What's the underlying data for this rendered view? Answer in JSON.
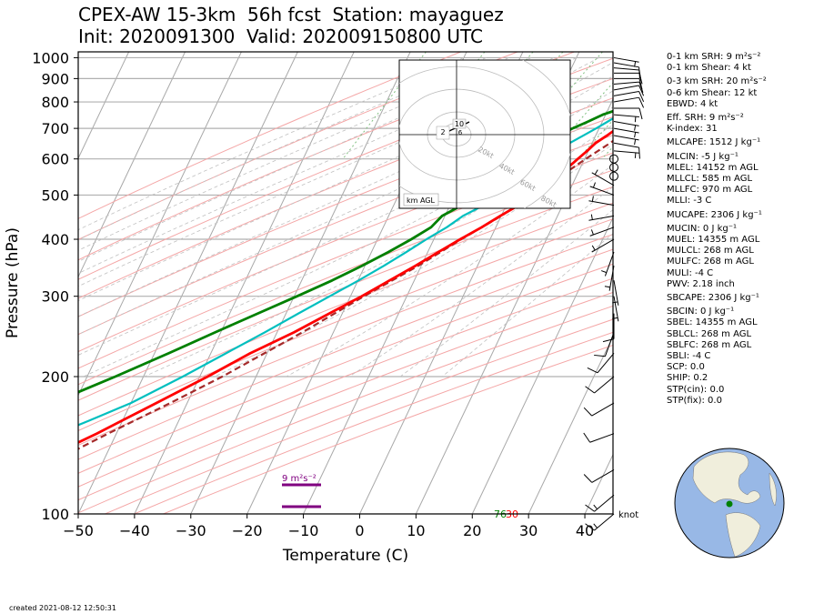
{
  "header": {
    "line1": "CPEX-AW 15-3km  56h fcst  Station: mayaguez",
    "line2": "Init: 2020091300  Valid: 202009150800 UTC"
  },
  "footer": {
    "created": "created 2021-08-12 12:50:31"
  },
  "stats": [
    {
      "text": "0-1 km SRH: 9 m²s⁻²",
      "gap": false
    },
    {
      "text": "0-1 km Shear: 4 kt",
      "gap": false
    },
    {
      "text": "0-3 km SRH: 20 m²s⁻²",
      "gap": true
    },
    {
      "text": "0-6 km Shear: 12 kt",
      "gap": false
    },
    {
      "text": "EBWD: 4 kt",
      "gap": false
    },
    {
      "text": "Eff. SRH: 9 m²s⁻²",
      "gap": true
    },
    {
      "text": "K-index: 31",
      "gap": false
    },
    {
      "text": "MLCAPE: 1512 J kg⁻¹",
      "gap": true
    },
    {
      "text": "MLCIN: -5 J kg⁻¹",
      "gap": true
    },
    {
      "text": "MLEL: 14152 m AGL",
      "gap": false
    },
    {
      "text": "MLLCL: 585 m AGL",
      "gap": false
    },
    {
      "text": "MLLFC: 970 m AGL",
      "gap": false
    },
    {
      "text": "MLLI: -3 C",
      "gap": false
    },
    {
      "text": "MUCAPE: 2306 J kg⁻¹",
      "gap": true
    },
    {
      "text": "MUCIN: 0 J kg⁻¹",
      "gap": true
    },
    {
      "text": "MUEL: 14355 m AGL",
      "gap": false
    },
    {
      "text": "MULCL: 268 m AGL",
      "gap": false
    },
    {
      "text": "MULFC: 268 m AGL",
      "gap": false
    },
    {
      "text": "MULI: -4 C",
      "gap": false
    },
    {
      "text": "PWV: 2.18 inch",
      "gap": false
    },
    {
      "text": "SBCAPE: 2306 J kg⁻¹",
      "gap": true
    },
    {
      "text": "SBCIN: 0 J kg⁻¹",
      "gap": true
    },
    {
      "text": "SBEL: 14355 m AGL",
      "gap": false
    },
    {
      "text": "SBLCL: 268 m AGL",
      "gap": false
    },
    {
      "text": "SBLFC: 268 m AGL",
      "gap": false
    },
    {
      "text": "SBLI: -4 C",
      "gap": false
    },
    {
      "text": "SCP: 0.0",
      "gap": false
    },
    {
      "text": "SHIP: 0.2",
      "gap": false
    },
    {
      "text": "STP(cin): 0.0",
      "gap": false
    },
    {
      "text": "STP(fix): 0.0",
      "gap": false
    }
  ],
  "chart_data": {
    "type": "line",
    "chart_kind": "skew-T log-p",
    "xlabel": "Temperature (C)",
    "ylabel": "Pressure (hPa)",
    "xlim": [
      -50,
      45
    ],
    "ylim": [
      1030,
      100
    ],
    "y_scale": "log",
    "x_ticks": [
      "−50",
      "−40",
      "−30",
      "−20",
      "−10",
      "0",
      "10",
      "20",
      "30",
      "40"
    ],
    "x_tick_values": [
      -50,
      -40,
      -30,
      -20,
      -10,
      0,
      10,
      20,
      30,
      40
    ],
    "y_ticks": [
      "100",
      "200",
      "300",
      "400",
      "500",
      "600",
      "700",
      "800",
      "900",
      "1000"
    ],
    "y_tick_values": [
      100,
      200,
      300,
      400,
      500,
      600,
      700,
      800,
      900,
      1000
    ],
    "grid": true,
    "colors": {
      "temperature": "#ff0000",
      "dewpoint": "#008000",
      "wetbulb": "#00bfbf",
      "parcel": "#a52a2a",
      "dry_adiabat": "#f4a6a6",
      "moist_adiabat": "#c0c0c0",
      "mixing_ratio": "#7fbf7f",
      "srh_bar": "#800080"
    },
    "series": [
      {
        "key": "temperature",
        "pressure": [
          1010,
          1000,
          975,
          950,
          925,
          900,
          875,
          850,
          825,
          800,
          775,
          750,
          725,
          700,
          675,
          650,
          625,
          600,
          575,
          550,
          525,
          500,
          475,
          450,
          425,
          400,
          375,
          350,
          325,
          300,
          275,
          250,
          225,
          200,
          175,
          150,
          140,
          130,
          120,
          110,
          100
        ],
        "values": [
          27.5,
          26.0,
          24.8,
          23.6,
          22.5,
          21.2,
          20.0,
          19.2,
          18.3,
          17.2,
          16.0,
          15.0,
          14.0,
          13.2,
          12.0,
          10.6,
          9.8,
          8.8,
          7.8,
          6.8,
          5.6,
          4.4,
          2.2,
          -0.2,
          -2.5,
          -5.3,
          -8.1,
          -11.0,
          -14.4,
          -18.0,
          -22.3,
          -27.0,
          -33.0,
          -38.6,
          -45.5,
          -53.5,
          -57.4,
          -61.5,
          -65.8,
          -70.5,
          -75.0
        ]
      },
      {
        "key": "dewpoint",
        "pressure": [
          1010,
          1000,
          975,
          950,
          925,
          900,
          875,
          850,
          825,
          800,
          775,
          750,
          725,
          700,
          675,
          650,
          625,
          600,
          575,
          550,
          525,
          500,
          475,
          450,
          425,
          400,
          375,
          350,
          325,
          300,
          275,
          250,
          225,
          200,
          175,
          160,
          150,
          140,
          130,
          120,
          110,
          100
        ],
        "values": [
          25.2,
          23.7,
          22.6,
          21.8,
          20.8,
          19.1,
          18.4,
          18.5,
          16.5,
          14.3,
          12.3,
          9.5,
          7.5,
          5.3,
          3.3,
          1.4,
          2.5,
          2.0,
          1.4,
          -0.2,
          -3.1,
          -6.2,
          -7.9,
          -10.5,
          -11.5,
          -14.0,
          -17.0,
          -20.5,
          -24.6,
          -29.5,
          -35.0,
          -41.0,
          -47.5,
          -55.0,
          -64.0,
          -70.0,
          -73.5,
          -76.0,
          -78.0,
          -80.0,
          -82.0,
          -84.0
        ]
      },
      {
        "key": "wetbulb",
        "pressure": [
          1010,
          1000,
          975,
          950,
          925,
          900,
          875,
          850,
          825,
          800,
          775,
          750,
          725,
          700,
          675,
          650,
          625,
          600,
          575,
          550,
          525,
          500,
          475,
          450,
          425,
          400,
          375,
          350,
          325,
          300,
          275,
          250,
          225,
          200,
          175,
          160,
          150,
          140,
          130,
          120,
          110,
          100
        ],
        "values": [
          25.8,
          24.5,
          23.3,
          22.3,
          21.3,
          19.8,
          18.9,
          18.7,
          17.1,
          15.4,
          13.9,
          12.4,
          11.0,
          9.5,
          7.8,
          6.0,
          5.6,
          5.4,
          4.6,
          3.3,
          1.2,
          -1.6,
          -4.0,
          -6.8,
          -8.7,
          -11.3,
          -13.8,
          -16.6,
          -19.9,
          -23.7,
          -27.8,
          -32.2,
          -37.3,
          -43.0,
          -50.0,
          -56.0,
          -60.5,
          -64.5,
          -68.0,
          -71.5,
          -74.8,
          -78.0
        ]
      },
      {
        "key": "parcel",
        "pressure": [
          1010,
          1000,
          975,
          950,
          925,
          900,
          850,
          800,
          750,
          700,
          650,
          600,
          550,
          500,
          450,
          400,
          350,
          300,
          250,
          200,
          175,
          150,
          125,
          100
        ],
        "values": [
          27.5,
          28.5,
          27.6,
          26.6,
          25.5,
          24.3,
          22.2,
          20.2,
          18.0,
          15.6,
          13.2,
          10.2,
          7.2,
          3.7,
          0.0,
          -5.1,
          -10.5,
          -17.6,
          -25.5,
          -36.0,
          -43.0,
          -51.5,
          -61.0,
          -74.0
        ]
      }
    ],
    "surface_labels": {
      "temperature": "30",
      "dewpoint": "76"
    },
    "wind_barbs": {
      "units_label": "knot",
      "pressure": [
        1000,
        975,
        950,
        925,
        900,
        875,
        850,
        825,
        800,
        775,
        750,
        725,
        700,
        675,
        650,
        625,
        600,
        575,
        550,
        525,
        500,
        475,
        450,
        425,
        400,
        375,
        350,
        325,
        300,
        275,
        250,
        225,
        200,
        175,
        150,
        125,
        110,
        100
      ],
      "speed_kt": [
        7,
        8,
        9,
        9,
        9,
        10,
        10,
        10,
        10,
        8,
        6,
        5,
        6,
        7,
        8,
        6,
        0,
        0,
        0,
        5,
        5,
        5,
        5,
        5,
        5,
        5,
        5,
        5,
        5,
        10,
        10,
        10,
        10,
        10,
        10,
        10,
        15,
        15
      ],
      "direction_deg": [
        100,
        100,
        95,
        90,
        90,
        85,
        80,
        80,
        80,
        90,
        95,
        100,
        100,
        100,
        100,
        95,
        0,
        0,
        0,
        300,
        290,
        280,
        260,
        250,
        240,
        200,
        190,
        170,
        170,
        180,
        200,
        220,
        230,
        240,
        250,
        240,
        230,
        230
      ]
    },
    "srh_annotation": {
      "text": "9 m²s⁻²",
      "layers_hpa": [
        [
          1030,
          1000
        ],
        [
          1000,
          900
        ]
      ]
    },
    "hodograph": {
      "rings_kt": [
        10,
        20,
        40,
        60,
        80
      ],
      "ring_labels": [
        "10",
        "20kt",
        "40kt",
        "60kt",
        "80kt"
      ],
      "height_labels": [
        "2",
        "6"
      ],
      "legend": "km AGL"
    },
    "globe": {
      "marker_label": "mayaguez",
      "lat": 18.2,
      "lon": -67.1
    }
  }
}
